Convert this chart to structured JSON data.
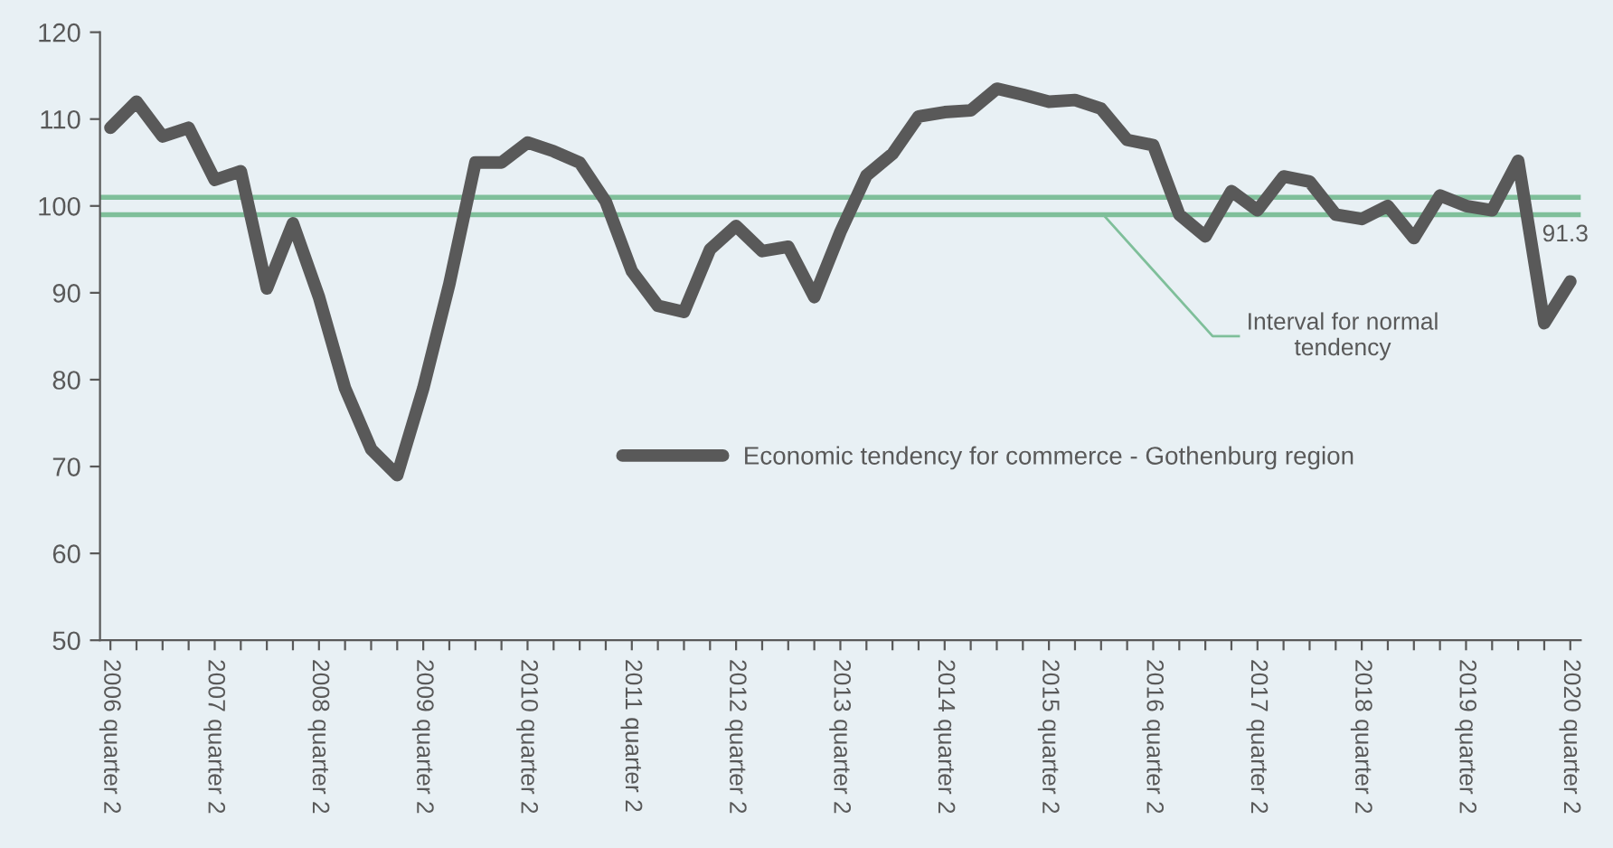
{
  "chart_data": {
    "type": "line",
    "categories": [
      "2006 quarter 2",
      null,
      null,
      null,
      "2007 quarter 2",
      null,
      null,
      null,
      "2008 quarter 2",
      null,
      null,
      null,
      "2009 quarter 2",
      null,
      null,
      null,
      "2010 quarter 2",
      null,
      null,
      null,
      "2011 quarter 2",
      null,
      null,
      null,
      "2012 quarter 2",
      null,
      null,
      null,
      "2013 quarter 2",
      null,
      null,
      null,
      "2014 quarter 2",
      null,
      null,
      null,
      "2015 quarter 2",
      null,
      null,
      null,
      "2016 quarter 2",
      null,
      null,
      null,
      "2017 quarter 2",
      null,
      null,
      null,
      "2018 quarter 2",
      null,
      null,
      null,
      "2019 quarter 2",
      null,
      null,
      null,
      "2020 quarter 2"
    ],
    "series": [
      {
        "name": "Economic tendency for commerce - Gothenburg region",
        "color": "#595959",
        "values": [
          109,
          112,
          108,
          109,
          103,
          104,
          90.5,
          98,
          89.5,
          79,
          72,
          69,
          79,
          91,
          105,
          105,
          107.3,
          106.3,
          105,
          100.5,
          92.5,
          88.5,
          87.8,
          95,
          97.7,
          94.8,
          95.3,
          89.5,
          97,
          103.5,
          106,
          110.3,
          110.8,
          111,
          113.5,
          112.8,
          112,
          112.2,
          111.2,
          107.6,
          107,
          99,
          96.5,
          101.7,
          99.5,
          103.4,
          102.8,
          99,
          98.5,
          100,
          96.3,
          101.2,
          100,
          99.5,
          105.2,
          86.5,
          91.3
        ],
        "value_labels": [
          null,
          null,
          null,
          null,
          null,
          null,
          null,
          null,
          null,
          null,
          null,
          null,
          null,
          null,
          null,
          null,
          null,
          null,
          null,
          null,
          null,
          null,
          null,
          null,
          null,
          null,
          null,
          null,
          null,
          null,
          null,
          null,
          null,
          null,
          null,
          null,
          null,
          null,
          null,
          null,
          null,
          null,
          null,
          null,
          null,
          null,
          null,
          null,
          null,
          null,
          null,
          null,
          null,
          null,
          null,
          null,
          "91.3"
        ]
      }
    ],
    "ref_lines": [
      {
        "axis": "y",
        "value": 101,
        "color": "#7fbf9a"
      },
      {
        "axis": "y",
        "value": 99,
        "color": "#7fbf9a",
        "label": "Interval for normal\ntendency"
      }
    ],
    "ylim": [
      50,
      120
    ],
    "yticks": [
      50,
      60,
      70,
      80,
      90,
      100,
      110,
      120
    ],
    "grid": false,
    "legend": "bottom",
    "marker": "none",
    "line_style": "solid"
  }
}
